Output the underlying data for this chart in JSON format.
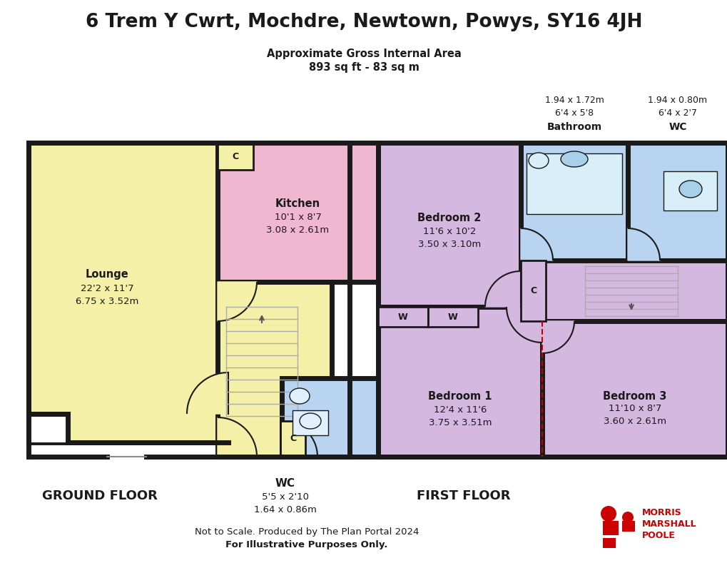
{
  "title": "6 Trem Y Cwrt, Mochdre, Newtown, Powys, SY16 4JH",
  "subtitle1": "Approximate Gross Internal Area",
  "subtitle2": "893 sq ft - 83 sq m",
  "ground_floor_label": "GROUND FLOOR",
  "first_floor_label": "FIRST FLOOR",
  "footer1": "Not to Scale. Produced by The Plan Portal 2024",
  "footer2": "For Illustrative Purposes Only.",
  "bg_color": "#ffffff",
  "wall_color": "#1a1a1a",
  "lounge_color": "#f5f0a8",
  "kitchen_color": "#f0b8d0",
  "wc_gf_color": "#b8d4f0",
  "hallway_color": "#f5f0a8",
  "bedroom1_color": "#d4b8e0",
  "bedroom2_color": "#d4b8e0",
  "bedroom3_color": "#d4b8e0",
  "bathroom_color": "#b8d4f0",
  "wc_ff_color": "#b8d4f0",
  "landing_color": "#d4b8e0",
  "text_color": "#1a1a1a",
  "logo_color": "#cc0000",
  "stair_color": "#cccccc"
}
